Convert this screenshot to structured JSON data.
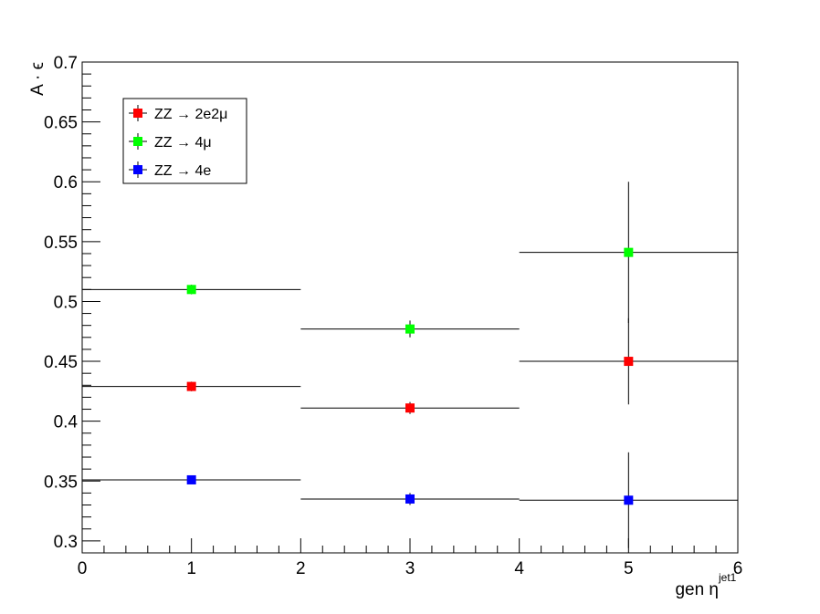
{
  "chart_data": {
    "type": "scatter",
    "xlabel": "gen η",
    "xlabel_superscript": "jet1",
    "ylabel": "A · ϵ",
    "xlim": [
      0,
      6
    ],
    "ylim": [
      0.29,
      0.7
    ],
    "x_ticks": [
      "0",
      "1",
      "2",
      "3",
      "4",
      "5",
      "6"
    ],
    "y_ticks": [
      "0.3",
      "0.35",
      "0.4",
      "0.45",
      "0.5",
      "0.55",
      "0.6",
      "0.65",
      "0.7"
    ],
    "grid": false,
    "legend_position": "top-left",
    "series": [
      {
        "name": "ZZ → 2e2μ",
        "color": "#ff0000",
        "points": [
          {
            "x": 1,
            "xlow": 0,
            "xhigh": 2,
            "y": 0.429,
            "yerr": 0.004
          },
          {
            "x": 3,
            "xlow": 2,
            "xhigh": 4,
            "y": 0.411,
            "yerr": 0.005
          },
          {
            "x": 5,
            "xlow": 4,
            "xhigh": 6,
            "y": 0.45,
            "yerr": 0.036
          }
        ]
      },
      {
        "name": "ZZ → 4μ",
        "color": "#00ff00",
        "points": [
          {
            "x": 1,
            "xlow": 0,
            "xhigh": 2,
            "y": 0.51,
            "yerr": 0.004
          },
          {
            "x": 3,
            "xlow": 2,
            "xhigh": 4,
            "y": 0.477,
            "yerr": 0.007
          },
          {
            "x": 5,
            "xlow": 4,
            "xhigh": 6,
            "y": 0.541,
            "yerr": 0.059
          }
        ]
      },
      {
        "name": "ZZ → 4e",
        "color": "#0000ff",
        "points": [
          {
            "x": 1,
            "xlow": 0,
            "xhigh": 2,
            "y": 0.351,
            "yerr": 0.003
          },
          {
            "x": 3,
            "xlow": 2,
            "xhigh": 4,
            "y": 0.335,
            "yerr": 0.005
          },
          {
            "x": 5,
            "xlow": 4,
            "xhigh": 6,
            "y": 0.334,
            "yerr": 0.04
          }
        ]
      }
    ]
  }
}
